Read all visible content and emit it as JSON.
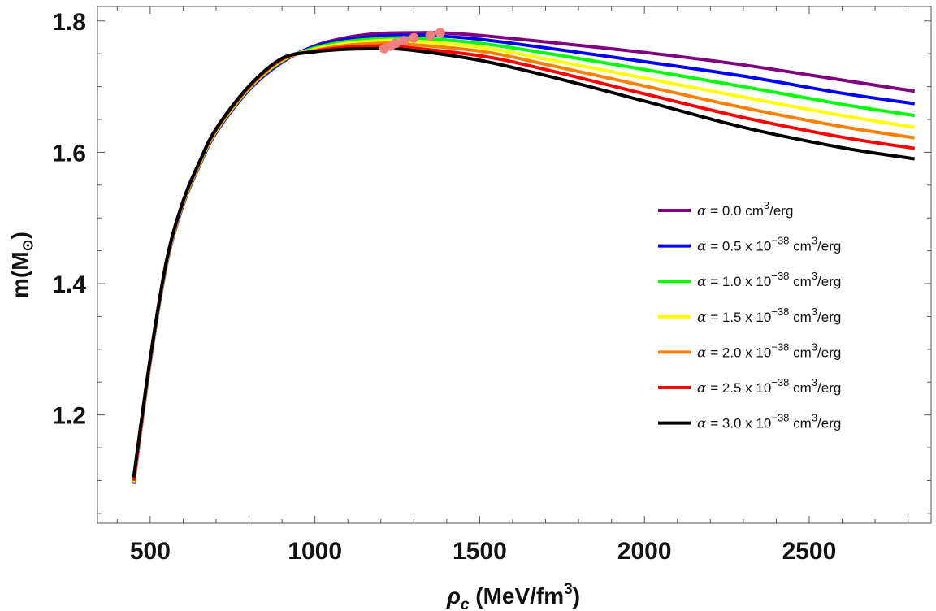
{
  "chart_data": {
    "type": "line",
    "title": "",
    "xlabel": "ρc (MeV/fm3)",
    "ylabel": "m(M⊙)",
    "xlabel_parts": {
      "symbol": "ρ",
      "sub": "c",
      "text": " (MeV/fm",
      "sup": "3",
      "close": ")"
    },
    "ylabel_parts": {
      "text": "m(M",
      "sun": "⊙",
      "close": ")"
    },
    "xlim": [
      340,
      2870
    ],
    "ylim": [
      1.035,
      1.822
    ],
    "xticks": [
      500,
      1000,
      1500,
      2000,
      2500
    ],
    "xtick_labels": [
      "500",
      "1000",
      "1500",
      "2000",
      "2500"
    ],
    "yticks": [
      1.2,
      1.4,
      1.6,
      1.8
    ],
    "ytick_labels": [
      "1.2",
      "1.4",
      "1.6",
      "1.8"
    ],
    "grid": false,
    "legend_position": "right-center",
    "series": [
      {
        "name": "α = 0.0 cm3/erg",
        "legend": {
          "alpha": "α",
          "value": " = 0.0",
          "power": "",
          "unit": " cm",
          "unit_sup": "3",
          "tail": "/erg"
        },
        "color": "#800080",
        "x": [
          450,
          500,
          550,
          600,
          650,
          700,
          800,
          900,
          1000,
          1100,
          1200,
          1300,
          1380,
          1500,
          1700,
          2000,
          2300,
          2600,
          2820
        ],
        "y": [
          1.095,
          1.28,
          1.43,
          1.52,
          1.58,
          1.63,
          1.695,
          1.737,
          1.762,
          1.775,
          1.781,
          1.782,
          1.782,
          1.778,
          1.768,
          1.752,
          1.733,
          1.71,
          1.693
        ]
      },
      {
        "name": "α = 0.5 x 10−38 cm3/erg",
        "legend": {
          "alpha": "α",
          "value": " = 0.5 x 10",
          "power": "−38",
          "unit": " cm",
          "unit_sup": "3",
          "tail": "/erg"
        },
        "color": "#0000ff",
        "x": [
          450,
          500,
          550,
          600,
          650,
          700,
          800,
          900,
          1000,
          1100,
          1200,
          1300,
          1350,
          1500,
          1700,
          2000,
          2300,
          2600,
          2820
        ],
        "y": [
          1.096,
          1.281,
          1.431,
          1.521,
          1.581,
          1.631,
          1.696,
          1.738,
          1.761,
          1.772,
          1.777,
          1.778,
          1.778,
          1.772,
          1.759,
          1.738,
          1.716,
          1.69,
          1.674
        ]
      },
      {
        "name": "α = 1.0 x 10−38 cm3/erg",
        "legend": {
          "alpha": "α",
          "value": " = 1.0 x 10",
          "power": "−38",
          "unit": " cm",
          "unit_sup": "3",
          "tail": "/erg"
        },
        "color": "#00ff00",
        "x": [
          450,
          500,
          550,
          600,
          650,
          700,
          800,
          900,
          1000,
          1100,
          1200,
          1300,
          1500,
          1700,
          2000,
          2300,
          2600,
          2820
        ],
        "y": [
          1.097,
          1.282,
          1.432,
          1.522,
          1.582,
          1.632,
          1.697,
          1.739,
          1.759,
          1.769,
          1.773,
          1.774,
          1.766,
          1.751,
          1.726,
          1.7,
          1.673,
          1.656
        ]
      },
      {
        "name": "α = 1.5 x 10−38 cm3/erg",
        "legend": {
          "alpha": "α",
          "value": " = 1.5 x 10",
          "power": "−38",
          "unit": " cm",
          "unit_sup": "3",
          "tail": "/erg"
        },
        "color": "#ffff00",
        "x": [
          450,
          500,
          550,
          600,
          650,
          700,
          800,
          900,
          1000,
          1100,
          1200,
          1270,
          1500,
          1700,
          2000,
          2300,
          2600,
          2820
        ],
        "y": [
          1.098,
          1.283,
          1.433,
          1.523,
          1.583,
          1.633,
          1.698,
          1.74,
          1.757,
          1.766,
          1.77,
          1.77,
          1.76,
          1.742,
          1.713,
          1.684,
          1.656,
          1.638
        ]
      },
      {
        "name": "α = 2.0 x 10−38 cm3/erg",
        "legend": {
          "alpha": "α",
          "value": " = 2.0 x 10",
          "power": "−38",
          "unit": " cm",
          "unit_sup": "3",
          "tail": "/erg"
        },
        "color": "#ff8000",
        "x": [
          450,
          500,
          550,
          600,
          650,
          700,
          800,
          900,
          1000,
          1100,
          1200,
          1240,
          1500,
          1700,
          2000,
          2300,
          2600,
          2820
        ],
        "y": [
          1.099,
          1.284,
          1.434,
          1.524,
          1.584,
          1.634,
          1.699,
          1.741,
          1.755,
          1.763,
          1.766,
          1.766,
          1.754,
          1.734,
          1.701,
          1.668,
          1.639,
          1.622
        ]
      },
      {
        "name": "α = 2.5 x 10−38 cm3/erg",
        "legend": {
          "alpha": "α",
          "value": " = 2.5 x 10",
          "power": "−38",
          "unit": " cm",
          "unit_sup": "3",
          "tail": "/erg"
        },
        "color": "#ff0000",
        "x": [
          450,
          500,
          550,
          600,
          650,
          700,
          800,
          900,
          1000,
          1100,
          1200,
          1230,
          1500,
          1700,
          2000,
          2300,
          2600,
          2820
        ],
        "y": [
          1.1,
          1.285,
          1.435,
          1.525,
          1.585,
          1.635,
          1.7,
          1.742,
          1.754,
          1.76,
          1.762,
          1.762,
          1.747,
          1.726,
          1.689,
          1.653,
          1.623,
          1.606
        ]
      },
      {
        "name": "α = 3.0 x 10−38 cm3/erg",
        "legend": {
          "alpha": "α",
          "value": " = 3.0 x 10",
          "power": "−38",
          "unit": " cm",
          "unit_sup": "3",
          "tail": "/erg"
        },
        "color": "#000000",
        "x": [
          450,
          500,
          550,
          600,
          650,
          700,
          800,
          900,
          1000,
          1100,
          1200,
          1210,
          1300,
          1500,
          1700,
          2000,
          2300,
          2600,
          2820
        ],
        "y": [
          1.105,
          1.286,
          1.436,
          1.526,
          1.586,
          1.636,
          1.701,
          1.743,
          1.753,
          1.757,
          1.758,
          1.758,
          1.755,
          1.74,
          1.717,
          1.678,
          1.638,
          1.607,
          1.59
        ]
      }
    ],
    "maxima_points": {
      "color": "#f08080",
      "points": [
        {
          "x": 1380,
          "y": 1.782
        },
        {
          "x": 1350,
          "y": 1.778
        },
        {
          "x": 1300,
          "y": 1.774
        },
        {
          "x": 1270,
          "y": 1.77
        },
        {
          "x": 1245,
          "y": 1.766
        },
        {
          "x": 1230,
          "y": 1.762
        },
        {
          "x": 1210,
          "y": 1.758
        }
      ]
    }
  }
}
